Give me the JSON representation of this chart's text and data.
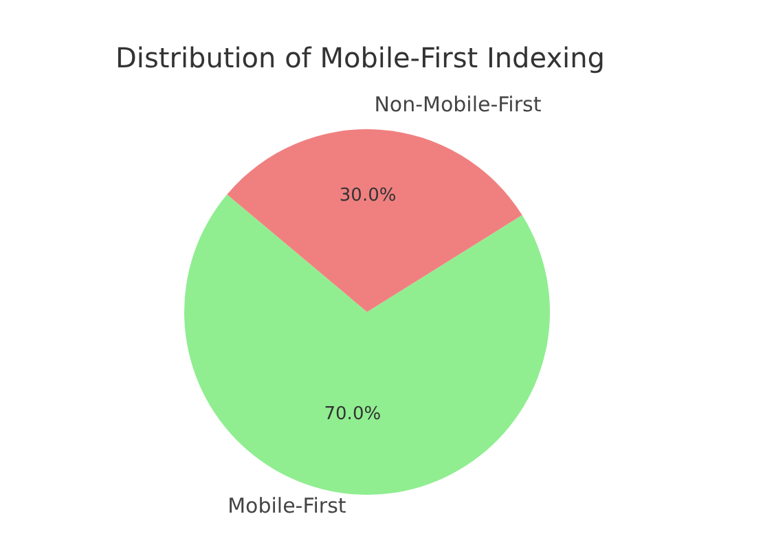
{
  "chart_data": {
    "type": "pie",
    "title": "Distribution of Mobile-First Indexing",
    "categories": [
      "Mobile-First",
      "Non-Mobile-First"
    ],
    "values": [
      70,
      30
    ],
    "colors": [
      "#90ee90",
      "#f08080"
    ],
    "value_labels": [
      "70.0%",
      "30.0%"
    ]
  }
}
